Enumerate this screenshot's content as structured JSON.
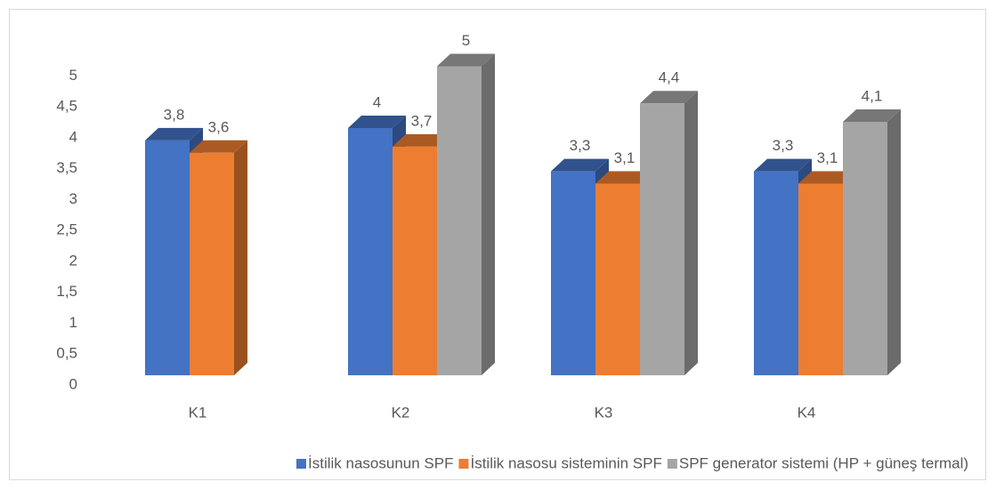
{
  "chart_data": {
    "type": "bar3d",
    "categories": [
      "K1",
      "K2",
      "K3",
      "K4"
    ],
    "series": [
      {
        "name": "İstilik nasosunun SPF",
        "color": "#4472c4",
        "values": [
          3.8,
          4,
          3.3,
          3.3
        ],
        "value_labels": [
          "3,8",
          "4",
          "3,3",
          "3,3"
        ]
      },
      {
        "name": "İstilik nasosu sisteminin SPF",
        "color": "#ed7d31",
        "values": [
          3.6,
          3.7,
          3.1,
          3.1
        ],
        "value_labels": [
          "3,6",
          "3,7",
          "3,1",
          "3,1"
        ]
      },
      {
        "name": "SPF generator sistemi (HP + güneş termal)",
        "color": "#a5a5a5",
        "values": [
          null,
          5,
          4.4,
          4.1
        ],
        "value_labels": [
          null,
          "5",
          "4,4",
          "4,1"
        ]
      }
    ],
    "ylim": [
      0,
      5
    ],
    "yticks": [
      0,
      {
        "value": 0.5,
        "label": "0,5"
      },
      1,
      {
        "value": 1.5,
        "label": "1,5"
      },
      2,
      {
        "value": 2.5,
        "label": "2,5"
      },
      3,
      {
        "value": 3.5,
        "label": "3,5"
      },
      4,
      {
        "value": 4.5,
        "label": "4,5"
      },
      5
    ],
    "legend": "bottom"
  }
}
